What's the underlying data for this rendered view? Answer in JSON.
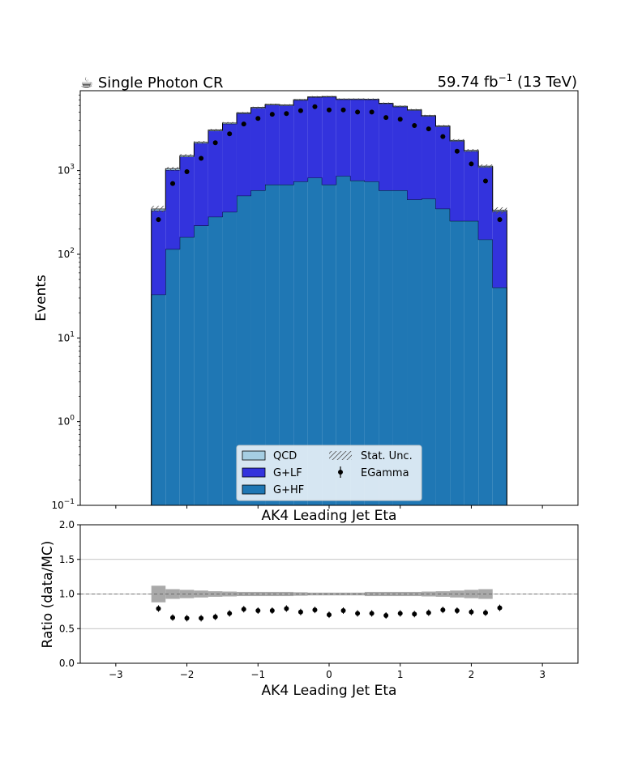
{
  "header": {
    "title": "☕ Single Photon CR",
    "lumi_main": "59.74 fb",
    "lumi_sup": "−1",
    "lumi_tail": " (13 TeV)"
  },
  "chart_data": [
    {
      "type": "stacked-histogram",
      "ylabel": "Events",
      "xlabel": "AK4 Leading Jet Eta",
      "yscale": "log",
      "ylim": [
        0.1,
        9000
      ],
      "xlim": [
        -3.5,
        3.5
      ],
      "y_ticks": [
        {
          "value": 0.1,
          "base": "10",
          "exp": "−1"
        },
        {
          "value": 1,
          "base": "10",
          "exp": "0"
        },
        {
          "value": 10,
          "base": "10",
          "exp": "1"
        },
        {
          "value": 100,
          "base": "10",
          "exp": "2"
        },
        {
          "value": 1000,
          "base": "10",
          "exp": "3"
        }
      ],
      "bin_edges": [
        -2.5,
        -2.3,
        -2.1,
        -1.9,
        -1.7,
        -1.5,
        -1.3,
        -1.1,
        -0.9,
        -0.7,
        -0.5,
        -0.3,
        -0.1,
        0.1,
        0.3,
        0.5,
        0.7,
        0.9,
        1.1,
        1.3,
        1.5,
        1.7,
        1.9,
        2.1,
        2.3,
        2.5
      ],
      "series": [
        {
          "name": "G+HF",
          "color": "#1f77b4",
          "values": [
            33,
            115,
            160,
            220,
            280,
            320,
            500,
            580,
            680,
            680,
            740,
            820,
            680,
            860,
            760,
            740,
            580,
            580,
            450,
            460,
            350,
            250,
            250,
            150,
            40
          ]
        },
        {
          "name": "G+LF",
          "color": "#3333dd",
          "values": [
            300,
            900,
            1300,
            1900,
            2700,
            3300,
            4300,
            5000,
            5400,
            5300,
            6200,
            6700,
            6900,
            6200,
            6300,
            6300,
            5700,
            5200,
            4800,
            4000,
            3000,
            2000,
            1450,
            950,
            285
          ]
        },
        {
          "name": "QCD",
          "color": "#a6cee3",
          "values": [
            15,
            40,
            50,
            60,
            70,
            80,
            100,
            100,
            100,
            100,
            100,
            100,
            100,
            100,
            100,
            100,
            100,
            100,
            80,
            70,
            60,
            50,
            40,
            30,
            10
          ]
        }
      ],
      "data_series": {
        "name": "EGamma",
        "x": [
          -2.4,
          -2.2,
          -2.0,
          -1.8,
          -1.6,
          -1.4,
          -1.2,
          -1.0,
          -0.8,
          -0.6,
          -0.4,
          -0.2,
          0.0,
          0.2,
          0.4,
          0.6,
          0.8,
          1.0,
          1.2,
          1.4,
          1.6,
          1.8,
          2.0,
          2.2,
          2.4
        ],
        "values": [
          260,
          700,
          970,
          1400,
          2150,
          2750,
          3600,
          4200,
          4700,
          4800,
          5200,
          5800,
          5300,
          5300,
          5000,
          5000,
          4300,
          4100,
          3450,
          3150,
          2550,
          1700,
          1200,
          750,
          260
        ]
      },
      "uncertainty": {
        "name": "Stat. Unc."
      },
      "legend": {
        "position": "bottom-center",
        "entries": [
          "QCD",
          "G+LF",
          "G+HF",
          "Stat. Unc.",
          "EGamma"
        ]
      }
    },
    {
      "type": "scatter",
      "xlabel": "AK4 Leading Jet Eta",
      "ylabel": "Ratio (data/MC)",
      "xlim": [
        -3.5,
        3.5
      ],
      "ylim": [
        0.0,
        2.0
      ],
      "x_ticks": [
        {
          "value": -3,
          "label": "−3"
        },
        {
          "value": -2,
          "label": "−2"
        },
        {
          "value": -1,
          "label": "−1"
        },
        {
          "value": 0,
          "label": "0"
        },
        {
          "value": 1,
          "label": "1"
        },
        {
          "value": 2,
          "label": "2"
        },
        {
          "value": 3,
          "label": "3"
        }
      ],
      "y_ticks": [
        {
          "value": 0.0,
          "label": "0.0"
        },
        {
          "value": 0.5,
          "label": "0.5"
        },
        {
          "value": 1.0,
          "label": "1.0"
        },
        {
          "value": 1.5,
          "label": "1.5"
        },
        {
          "value": 2.0,
          "label": "2.0"
        }
      ],
      "grid": true,
      "reference_line": 1.0,
      "x": [
        -2.4,
        -2.2,
        -2.0,
        -1.8,
        -1.6,
        -1.4,
        -1.2,
        -1.0,
        -0.8,
        -0.6,
        -0.4,
        -0.2,
        0.0,
        0.2,
        0.4,
        0.6,
        0.8,
        1.0,
        1.2,
        1.4,
        1.6,
        1.8,
        2.0,
        2.2,
        2.4
      ],
      "values": [
        0.79,
        0.66,
        0.65,
        0.65,
        0.67,
        0.72,
        0.78,
        0.76,
        0.76,
        0.79,
        0.74,
        0.77,
        0.7,
        0.76,
        0.72,
        0.72,
        0.69,
        0.72,
        0.71,
        0.73,
        0.77,
        0.76,
        0.74,
        0.73,
        0.8
      ],
      "uncertainty_band": [
        0.12,
        0.07,
        0.06,
        0.05,
        0.04,
        0.035,
        0.03,
        0.03,
        0.03,
        0.03,
        0.025,
        0.02,
        0.02,
        0.02,
        0.02,
        0.03,
        0.03,
        0.03,
        0.03,
        0.035,
        0.04,
        0.05,
        0.06,
        0.07,
        0.0
      ]
    }
  ]
}
